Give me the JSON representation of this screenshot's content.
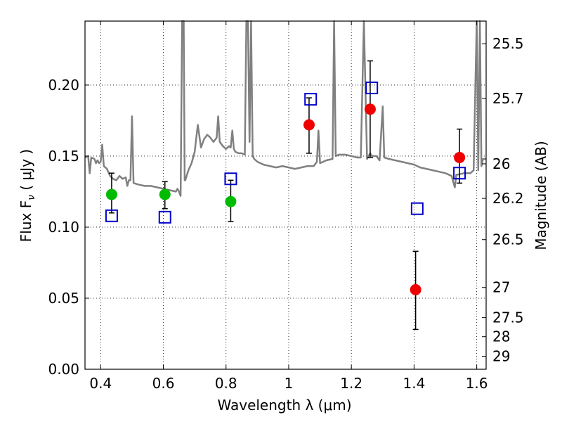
{
  "chart_data": {
    "type": "scatter",
    "xlabel": "Wavelength  λ (μm)",
    "ylabel": "Flux  F",
    "ylabel_sub": "ν",
    "ylabel_unit": "  ( μJy )",
    "y2label": "Magnitude (AB)",
    "xlim": [
      0.35,
      1.63
    ],
    "ylim": [
      0.0,
      0.245
    ],
    "grid": true,
    "x_ticks": [
      {
        "value": 0.4,
        "label": "0.4"
      },
      {
        "value": 0.6,
        "label": "0.6"
      },
      {
        "value": 0.8,
        "label": "0.8"
      },
      {
        "value": 1.0,
        "label": "1"
      },
      {
        "value": 1.2,
        "label": "1.2"
      },
      {
        "value": 1.4,
        "label": "1.4"
      },
      {
        "value": 1.6,
        "label": "1.6"
      }
    ],
    "y_ticks": [
      {
        "value": 0.0,
        "label": "0.00"
      },
      {
        "value": 0.05,
        "label": "0.05"
      },
      {
        "value": 0.1,
        "label": "0.10"
      },
      {
        "value": 0.15,
        "label": "0.15"
      },
      {
        "value": 0.2,
        "label": "0.20"
      }
    ],
    "y2_ticks": [
      {
        "mag": 25.5,
        "label": "25.5"
      },
      {
        "mag": 25.7,
        "label": "25.7"
      },
      {
        "mag": 26,
        "label": "26"
      },
      {
        "mag": 26.2,
        "label": "26.2"
      },
      {
        "mag": 26.5,
        "label": "26.5"
      },
      {
        "mag": 27,
        "label": "27"
      },
      {
        "mag": 27.5,
        "label": "27.5"
      },
      {
        "mag": 28,
        "label": "28"
      },
      {
        "mag": 29,
        "label": "29"
      }
    ],
    "series": [
      {
        "role": "template_spectrum",
        "color": "#808080",
        "points": [
          [
            0.35,
            0.149
          ],
          [
            0.36,
            0.15
          ],
          [
            0.365,
            0.138
          ],
          [
            0.37,
            0.149
          ],
          [
            0.38,
            0.148
          ],
          [
            0.385,
            0.145
          ],
          [
            0.39,
            0.147
          ],
          [
            0.395,
            0.145
          ],
          [
            0.4,
            0.146
          ],
          [
            0.405,
            0.158
          ],
          [
            0.41,
            0.143
          ],
          [
            0.42,
            0.141
          ],
          [
            0.43,
            0.136
          ],
          [
            0.44,
            0.134
          ],
          [
            0.45,
            0.133
          ],
          [
            0.46,
            0.136
          ],
          [
            0.47,
            0.134
          ],
          [
            0.48,
            0.135
          ],
          [
            0.485,
            0.129
          ],
          [
            0.49,
            0.133
          ],
          [
            0.495,
            0.133
          ],
          [
            0.5,
            0.178
          ],
          [
            0.505,
            0.131
          ],
          [
            0.52,
            0.13
          ],
          [
            0.54,
            0.129
          ],
          [
            0.56,
            0.129
          ],
          [
            0.58,
            0.128
          ],
          [
            0.6,
            0.127
          ],
          [
            0.62,
            0.126
          ],
          [
            0.64,
            0.125
          ],
          [
            0.645,
            0.127
          ],
          [
            0.65,
            0.125
          ],
          [
            0.655,
            0.122
          ],
          [
            0.66,
            0.245
          ],
          [
            0.665,
            0.245
          ],
          [
            0.668,
            0.133
          ],
          [
            0.67,
            0.133
          ],
          [
            0.68,
            0.14
          ],
          [
            0.69,
            0.145
          ],
          [
            0.7,
            0.153
          ],
          [
            0.71,
            0.172
          ],
          [
            0.72,
            0.156
          ],
          [
            0.73,
            0.162
          ],
          [
            0.74,
            0.165
          ],
          [
            0.75,
            0.163
          ],
          [
            0.76,
            0.16
          ],
          [
            0.77,
            0.163
          ],
          [
            0.775,
            0.178
          ],
          [
            0.78,
            0.16
          ],
          [
            0.79,
            0.157
          ],
          [
            0.8,
            0.155
          ],
          [
            0.81,
            0.157
          ],
          [
            0.815,
            0.156
          ],
          [
            0.82,
            0.168
          ],
          [
            0.825,
            0.155
          ],
          [
            0.83,
            0.153
          ],
          [
            0.84,
            0.152
          ],
          [
            0.85,
            0.152
          ],
          [
            0.86,
            0.151
          ],
          [
            0.865,
            0.245
          ],
          [
            0.87,
            0.245
          ],
          [
            0.875,
            0.16
          ],
          [
            0.88,
            0.245
          ],
          [
            0.885,
            0.15
          ],
          [
            0.89,
            0.148
          ],
          [
            0.9,
            0.146
          ],
          [
            0.92,
            0.144
          ],
          [
            0.94,
            0.143
          ],
          [
            0.96,
            0.142
          ],
          [
            0.98,
            0.143
          ],
          [
            1.0,
            0.142
          ],
          [
            1.02,
            0.141
          ],
          [
            1.04,
            0.142
          ],
          [
            1.06,
            0.143
          ],
          [
            1.08,
            0.143
          ],
          [
            1.09,
            0.146
          ],
          [
            1.095,
            0.168
          ],
          [
            1.1,
            0.145
          ],
          [
            1.12,
            0.147
          ],
          [
            1.14,
            0.148
          ],
          [
            1.145,
            0.245
          ],
          [
            1.15,
            0.15
          ],
          [
            1.16,
            0.151
          ],
          [
            1.18,
            0.151
          ],
          [
            1.2,
            0.15
          ],
          [
            1.22,
            0.149
          ],
          [
            1.23,
            0.149
          ],
          [
            1.24,
            0.245
          ],
          [
            1.25,
            0.148
          ],
          [
            1.26,
            0.152
          ],
          [
            1.265,
            0.15
          ],
          [
            1.28,
            0.15
          ],
          [
            1.29,
            0.147
          ],
          [
            1.3,
            0.185
          ],
          [
            1.305,
            0.149
          ],
          [
            1.32,
            0.148
          ],
          [
            1.34,
            0.147
          ],
          [
            1.36,
            0.146
          ],
          [
            1.38,
            0.145
          ],
          [
            1.4,
            0.144
          ],
          [
            1.42,
            0.142
          ],
          [
            1.44,
            0.141
          ],
          [
            1.46,
            0.14
          ],
          [
            1.48,
            0.139
          ],
          [
            1.5,
            0.138
          ],
          [
            1.52,
            0.136
          ],
          [
            1.53,
            0.128
          ],
          [
            1.535,
            0.137
          ],
          [
            1.54,
            0.137
          ],
          [
            1.56,
            0.138
          ],
          [
            1.58,
            0.138
          ],
          [
            1.59,
            0.14
          ],
          [
            1.6,
            0.245
          ],
          [
            1.605,
            0.14
          ],
          [
            1.61,
            0.245
          ],
          [
            1.615,
            0.143
          ],
          [
            1.62,
            0.148
          ],
          [
            1.63,
            0.148
          ]
        ]
      },
      {
        "role": "model_photometry",
        "color": "#0000cc",
        "marker": "open-square",
        "points": [
          [
            0.435,
            0.108
          ],
          [
            0.605,
            0.107
          ],
          [
            0.815,
            0.134
          ],
          [
            1.07,
            0.19
          ],
          [
            1.265,
            0.198
          ],
          [
            1.41,
            0.113
          ],
          [
            1.545,
            0.138
          ]
        ]
      },
      {
        "role": "observed_optical",
        "color": "#00bb00",
        "marker": "filled-circle",
        "points": [
          {
            "x": 0.435,
            "y": 0.123,
            "lo": 0.11,
            "hi": 0.138
          },
          {
            "x": 0.605,
            "y": 0.123,
            "lo": 0.113,
            "hi": 0.132
          },
          {
            "x": 0.815,
            "y": 0.118,
            "lo": 0.104,
            "hi": 0.133
          }
        ]
      },
      {
        "role": "observed_nir",
        "color": "#ee0000",
        "marker": "filled-circle",
        "points": [
          {
            "x": 1.065,
            "y": 0.172,
            "lo": 0.152,
            "hi": 0.191
          },
          {
            "x": 1.26,
            "y": 0.183,
            "lo": 0.149,
            "hi": 0.217
          },
          {
            "x": 1.405,
            "y": 0.056,
            "lo": 0.028,
            "hi": 0.083
          },
          {
            "x": 1.545,
            "y": 0.149,
            "lo": 0.131,
            "hi": 0.169
          }
        ]
      }
    ]
  }
}
